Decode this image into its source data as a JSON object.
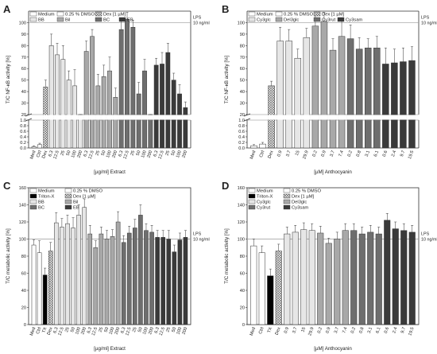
{
  "chart_data": [
    {
      "panel": "A",
      "type": "bar",
      "ylabel": "T/C NF-κB activity [%]",
      "xlabel": "[µg/ml] Extract",
      "yticks_upper": [
        "20",
        "30",
        "40",
        "50",
        "60",
        "70",
        "80",
        "90",
        "100"
      ],
      "yticks_lower": [
        "0.0",
        "0.2",
        "0.4",
        "0.6",
        "0.8",
        "1.0"
      ],
      "yrange_upper": [
        20,
        110
      ],
      "yrange_lower": [
        0,
        1.0
      ],
      "lps_label": [
        "LPS",
        "10 ng/ml"
      ],
      "legend": [
        "Medium",
        "0.25 % DMSO",
        "Dex [1 µM]",
        "BB",
        "Bil",
        "BC",
        "EB"
      ],
      "groups": [
        {
          "name": "Med",
          "values": [
            0.05
          ],
          "err": [
            0.03
          ],
          "style": "white"
        },
        {
          "name": "Ctrl",
          "values": [
            0.12
          ],
          "err": [
            0.05
          ],
          "style": "white"
        },
        {
          "name": "Dex",
          "values": [
            44
          ],
          "err": [
            6
          ],
          "style": "hatch"
        },
        {
          "name": "BB",
          "style": "light",
          "x": [
            "6.3",
            "12.5",
            "25",
            "50",
            "100",
            "200"
          ],
          "values": [
            80,
            72,
            68,
            50,
            45,
            18
          ],
          "err": [
            10,
            10,
            12,
            8,
            14,
            2
          ]
        },
        {
          "name": "Bil",
          "style": "mid",
          "x": [
            "6.3",
            "12.5",
            "25",
            "50",
            "100",
            "200"
          ],
          "values": [
            75,
            88,
            45,
            53,
            58,
            35
          ],
          "err": [
            9,
            6,
            10,
            10,
            12,
            8
          ]
        },
        {
          "name": "BC",
          "style": "dark",
          "x": [
            "6.3",
            "12.5",
            "25",
            "50",
            "100",
            "200"
          ],
          "values": [
            94,
            103,
            96,
            38,
            58,
            18
          ],
          "err": [
            8,
            6,
            6,
            10,
            10,
            2
          ]
        },
        {
          "name": "EB",
          "style": "black",
          "x": [
            "6.3",
            "12.5",
            "25",
            "50",
            "100",
            "200"
          ],
          "values": [
            63,
            64,
            74,
            50,
            38,
            26
          ],
          "err": [
            6,
            10,
            8,
            6,
            8,
            5
          ]
        }
      ]
    },
    {
      "panel": "B",
      "type": "bar",
      "ylabel": "T/C NF-κB activity [%]",
      "xlabel": "[µM] Anthocyanin",
      "yticks_upper": [
        "20",
        "30",
        "40",
        "50",
        "60",
        "70",
        "80",
        "90",
        "100"
      ],
      "yticks_lower": [
        "0.0",
        "0.2",
        "0.4",
        "0.6",
        "0.8",
        "1.0"
      ],
      "yrange_upper": [
        20,
        110
      ],
      "yrange_lower": [
        0,
        1.0
      ],
      "lps_label": [
        "LPS",
        "10 ng/ml"
      ],
      "legend": [
        "Medium",
        "0.25 % DMSO",
        "Dex [1 µM]",
        "Cy3glc",
        "Del3glc",
        "Cy3rut",
        "Cy3sam"
      ],
      "groups": [
        {
          "name": "Med",
          "values": [
            0.08
          ],
          "err": [
            0.04
          ],
          "style": "white"
        },
        {
          "name": "Ctrl",
          "values": [
            0.14
          ],
          "err": [
            0.06
          ],
          "style": "white"
        },
        {
          "name": "Dex",
          "values": [
            45
          ],
          "err": [
            4
          ],
          "style": "hatch"
        },
        {
          "name": "Cy3glc",
          "style": "light",
          "x": [
            "0.9",
            "3.7",
            "15",
            "29.9"
          ],
          "values": [
            84,
            84,
            69,
            87
          ],
          "err": [
            12,
            10,
            8,
            8
          ]
        },
        {
          "name": "Del3glc",
          "style": "mid",
          "x": [
            "0.2",
            "0.9",
            "3.7",
            "7.4"
          ],
          "values": [
            97,
            101,
            76,
            88
          ],
          "err": [
            12,
            8,
            10,
            14
          ]
        },
        {
          "name": "Cy3rut",
          "style": "dark",
          "x": [
            "0.2",
            "0.8",
            "3.1",
            "6.1"
          ],
          "values": [
            86,
            77,
            78,
            78
          ],
          "err": [
            12,
            10,
            8,
            10
          ]
        },
        {
          "name": "Cy3sam",
          "style": "black",
          "x": [
            "0.6",
            "2.4",
            "9.7",
            "19.5"
          ],
          "values": [
            64,
            65,
            66,
            67
          ],
          "err": [
            14,
            12,
            12,
            12
          ]
        }
      ]
    },
    {
      "panel": "C",
      "type": "bar",
      "ylabel": "T/C metabolic activity [%]",
      "xlabel": "[µg/ml] Extract",
      "yticks": [
        "0",
        "20",
        "40",
        "60",
        "80",
        "100",
        "120",
        "140",
        "160"
      ],
      "yrange": [
        0,
        160
      ],
      "lps_label": [
        "LPS",
        "10 ng/ml"
      ],
      "legend": [
        "Medium",
        "0.25 % DMSO",
        "Triton-X",
        "Dex [1 µM]",
        "BB",
        "Bil",
        "BC",
        "EB"
      ],
      "groups": [
        {
          "name": "Med",
          "values": [
            93
          ],
          "err": [
            6
          ],
          "style": "white"
        },
        {
          "name": "Ctrl",
          "values": [
            84
          ],
          "err": [
            14
          ],
          "style": "white"
        },
        {
          "name": "TX",
          "values": [
            58
          ],
          "err": [
            8
          ],
          "style": "solid"
        },
        {
          "name": "Dex",
          "values": [
            86
          ],
          "err": [
            10
          ],
          "style": "hatch"
        },
        {
          "name": "BB",
          "style": "light",
          "x": [
            "6.3",
            "12.5",
            "25",
            "50",
            "100",
            "200"
          ],
          "values": [
            119,
            114,
            118,
            113,
            128,
            137
          ],
          "err": [
            12,
            10,
            10,
            12,
            12,
            10
          ]
        },
        {
          "name": "Bil",
          "style": "mid",
          "x": [
            "6.3",
            "12.5",
            "25",
            "50",
            "100",
            "200"
          ],
          "values": [
            106,
            90,
            106,
            100,
            103,
            120
          ],
          "err": [
            10,
            8,
            8,
            10,
            8,
            12
          ]
        },
        {
          "name": "BC",
          "style": "dark",
          "x": [
            "6.3",
            "12.5",
            "25",
            "50",
            "100",
            "200"
          ],
          "values": [
            96,
            107,
            113,
            128,
            110,
            108
          ],
          "err": [
            8,
            8,
            10,
            12,
            8,
            8
          ]
        },
        {
          "name": "EB",
          "style": "black",
          "x": [
            "6.3",
            "12.5",
            "25",
            "50",
            "100",
            "200"
          ],
          "values": [
            102,
            102,
            100,
            85,
            99,
            102
          ],
          "err": [
            8,
            8,
            10,
            8,
            8,
            8
          ]
        }
      ]
    },
    {
      "panel": "D",
      "type": "bar",
      "ylabel": "T/C metabolic activity [%]",
      "xlabel": "[µM] Anthocyanin",
      "yticks": [
        "0",
        "20",
        "40",
        "60",
        "80",
        "100",
        "120",
        "140",
        "160"
      ],
      "yrange": [
        0,
        160
      ],
      "lps_label": [
        "LPS",
        "10 ng/ml"
      ],
      "legend": [
        "Medium",
        "0.25 % DMSO",
        "Triton-X",
        "Dex [1 µM]",
        "Cy3glc",
        "Del3glc",
        "Cy3rut",
        "Cy3sam"
      ],
      "groups": [
        {
          "name": "Med",
          "values": [
            92
          ],
          "err": [
            8
          ],
          "style": "white"
        },
        {
          "name": "Ctrl",
          "values": [
            84
          ],
          "err": [
            8
          ],
          "style": "white"
        },
        {
          "name": "TX",
          "values": [
            57
          ],
          "err": [
            8
          ],
          "style": "solid"
        },
        {
          "name": "Dex",
          "values": [
            86
          ],
          "err": [
            8
          ],
          "style": "hatch"
        },
        {
          "name": "Cy3glc",
          "style": "light",
          "x": [
            "0.9",
            "3.7",
            "15",
            "29.9"
          ],
          "values": [
            106,
            108,
            111,
            110
          ],
          "err": [
            8,
            8,
            8,
            8
          ]
        },
        {
          "name": "Del3glc",
          "style": "mid",
          "x": [
            "0.2",
            "0.9",
            "3.7",
            "7.4"
          ],
          "values": [
            107,
            95,
            100,
            110
          ],
          "err": [
            8,
            6,
            8,
            8
          ]
        },
        {
          "name": "Cy3rut",
          "style": "dark",
          "x": [
            "0.2",
            "0.8",
            "3.1",
            "6.1"
          ],
          "values": [
            110,
            106,
            108,
            106
          ],
          "err": [
            8,
            8,
            8,
            8
          ]
        },
        {
          "name": "Cy3sam",
          "style": "black",
          "x": [
            "0.6",
            "2.4",
            "9.7",
            "19.5"
          ],
          "values": [
            122,
            112,
            110,
            108
          ],
          "err": [
            8,
            8,
            8,
            8
          ]
        }
      ]
    }
  ],
  "colors": {
    "white": "#ffffff",
    "light": "#e6e6e6",
    "mid": "#a8a8a8",
    "dark": "#6e6e6e",
    "black": "#3a3a3a",
    "solid": "#000000",
    "lps_line": "#9a9a9a"
  }
}
